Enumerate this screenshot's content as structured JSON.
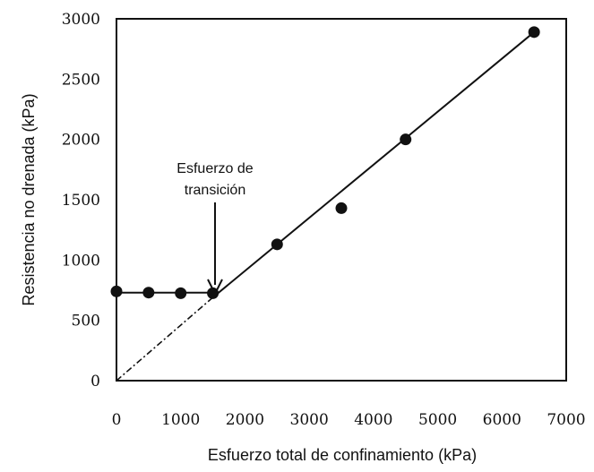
{
  "chart_data": {
    "type": "scatter",
    "xlabel": "Esfuerzo total de confinamiento (kPa)",
    "ylabel": "Resistencia no drenada (kPa)",
    "xlim": [
      0,
      7000
    ],
    "ylim": [
      0,
      3000
    ],
    "x_ticks": [
      "0",
      "1000",
      "2000",
      "3000",
      "4000",
      "5000",
      "6000",
      "7000"
    ],
    "y_ticks": [
      "0",
      "500",
      "1000",
      "1500",
      "2000",
      "2500",
      "3000"
    ],
    "grid": false,
    "series": [
      {
        "points": [
          {
            "x": 0,
            "y": 740
          },
          {
            "x": 500,
            "y": 730
          },
          {
            "x": 1000,
            "y": 725
          },
          {
            "x": 1500,
            "y": 725
          },
          {
            "x": 2500,
            "y": 1130
          },
          {
            "x": 3500,
            "y": 1430
          },
          {
            "x": 4500,
            "y": 2000
          },
          {
            "x": 6500,
            "y": 2890
          }
        ]
      }
    ],
    "lines": [
      {
        "style": "solid",
        "from": {
          "x": 0,
          "y": 730
        },
        "to": {
          "x": 1500,
          "y": 730
        }
      },
      {
        "style": "solid",
        "from": {
          "x": 1500,
          "y": 690
        },
        "to": {
          "x": 6500,
          "y": 2890
        }
      },
      {
        "style": "dash-dot",
        "from": {
          "x": 0,
          "y": 0
        },
        "to": {
          "x": 1500,
          "y": 690
        }
      }
    ],
    "annotation": {
      "lines": [
        "Esfuerzo de",
        "transición"
      ],
      "arrow_target": {
        "x": 1500,
        "y": 730
      }
    }
  }
}
